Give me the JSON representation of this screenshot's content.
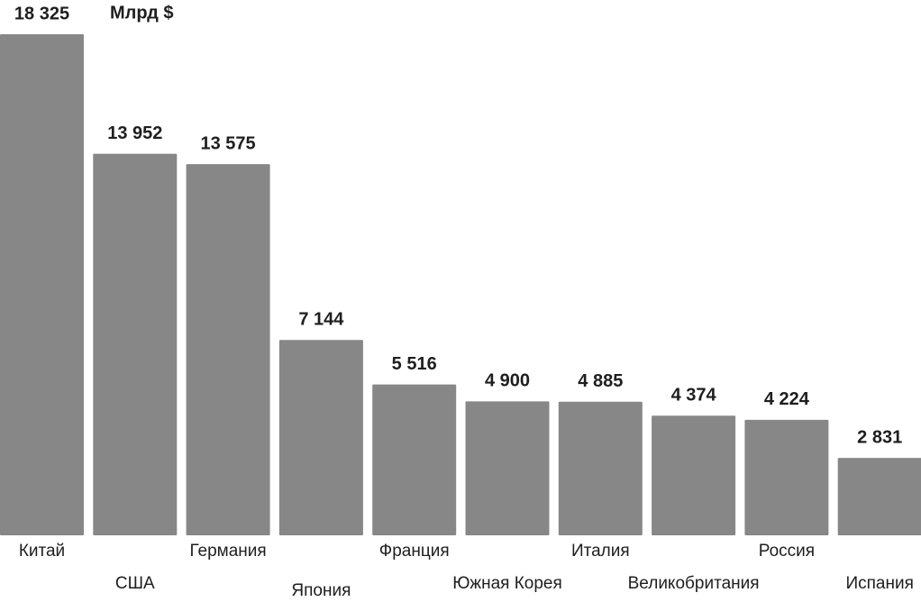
{
  "chart_data": {
    "type": "bar",
    "unit_label": "Млрд $",
    "categories": [
      "Китай",
      "США",
      "Германия",
      "Япония",
      "Франция",
      "Южная Корея",
      "Италия",
      "Великобритания",
      "Россия",
      "Испания"
    ],
    "values": [
      18325,
      13952,
      13575,
      7144,
      5516,
      4900,
      4885,
      4374,
      4224,
      2831
    ],
    "value_labels": [
      "18 325",
      "13 952",
      "13 575",
      "7 144",
      "5 516",
      "4 900",
      "4 885",
      "4 374",
      "4 224",
      "2 831"
    ],
    "color": "#878787"
  }
}
